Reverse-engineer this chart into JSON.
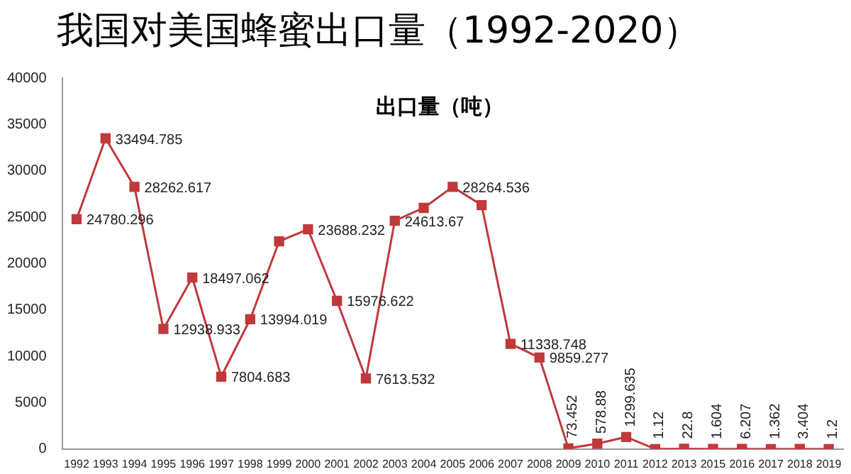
{
  "chart_data": {
    "type": "line",
    "title": "我国对美国蜂蜜出口量（1992-2020）",
    "subtitle": "出口量（吨）",
    "categories": [
      "1992",
      "1993",
      "1994",
      "1995",
      "1996",
      "1997",
      "1998",
      "1999",
      "2000",
      "2001",
      "2002",
      "2003",
      "2004",
      "2005",
      "2006",
      "2007",
      "2008",
      "2009",
      "2010",
      "2011",
      "2012",
      "2013",
      "2015",
      "2016",
      "2017",
      "2018",
      "2019"
    ],
    "series": [
      {
        "color": "#c0393b",
        "values": [
          24780.296,
          33494.785,
          28262.617,
          12938.933,
          18497.062,
          7804.683,
          13994.019,
          22400,
          23688.232,
          15976.622,
          7613.532,
          24613.67,
          26000,
          28264.536,
          26300,
          11338.748,
          9859.277,
          73.452,
          578.88,
          1299.635,
          1.12,
          22.8,
          1.604,
          6.207,
          1.362,
          3.404,
          1.2
        ],
        "value_labels": [
          "24780.296",
          "33494.785",
          "28262.617",
          "12938.933",
          "18497.062",
          "7804.683",
          "13994.019",
          null,
          "23688.232",
          "15976.622",
          "7613.532",
          "24613.67",
          null,
          "28264.536",
          null,
          "11338.748",
          "9859.277",
          "73.452",
          "578.88",
          "1299.635",
          "1.12",
          "22.8",
          "1.604",
          "6.207",
          "1.362",
          "3.404",
          "1.2"
        ]
      }
    ],
    "ylim": [
      0,
      40000
    ],
    "yticks": [
      0,
      5000,
      10000,
      15000,
      20000,
      25000,
      30000,
      35000,
      40000
    ],
    "grid": false,
    "legend": false,
    "marker": "square",
    "line_style": "solid"
  }
}
